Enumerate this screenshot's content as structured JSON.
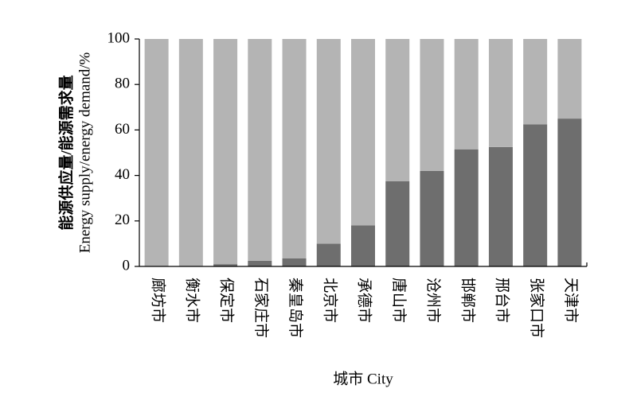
{
  "chart_data": {
    "type": "stacked_bar",
    "ylabel": [
      "能源供应量/能源需求量",
      "Energy supply/energy demand/%"
    ],
    "xlabel": "城市 City",
    "categories": [
      "廊坊市",
      "衡水市",
      "保定市",
      "石家庄市",
      "秦皇岛市",
      "北京市",
      "承德市",
      "唐山市",
      "沧州市",
      "邯郸市",
      "邢台市",
      "张家口市",
      "天津市"
    ],
    "series": [
      {
        "color": "#6e6e6e",
        "values": [
          0,
          0,
          1,
          2.5,
          3.5,
          10,
          18,
          37.5,
          42,
          51.5,
          52.5,
          62.5,
          65
        ]
      },
      {
        "color": "#b4b4b4",
        "values": [
          100,
          100,
          99,
          97.5,
          96.5,
          90,
          82,
          62.5,
          58,
          48.5,
          47.5,
          37.5,
          35
        ]
      }
    ],
    "ylim": [
      0,
      100
    ],
    "yticks": [
      0,
      20,
      40,
      60,
      80,
      100
    ]
  }
}
